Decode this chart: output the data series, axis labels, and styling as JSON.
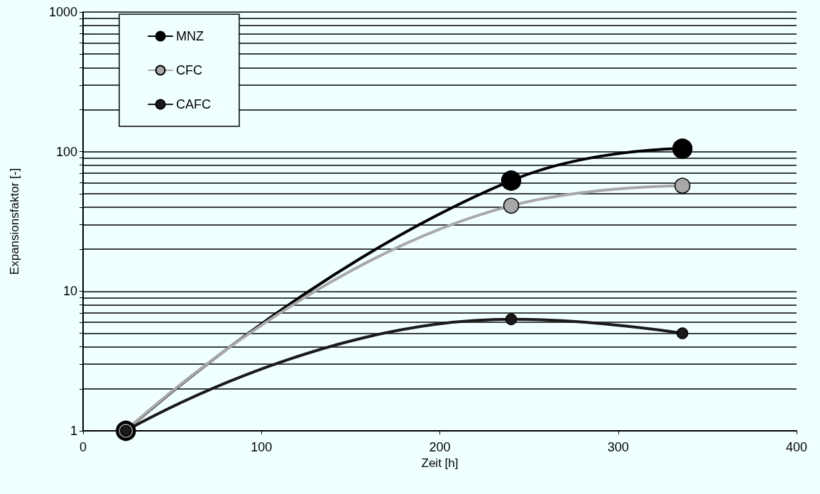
{
  "chart_data": {
    "type": "line",
    "xlabel": "Zeit [h]",
    "ylabel": "Expansionsfaktor [-]",
    "x": [
      24,
      240,
      336
    ],
    "series": [
      {
        "name": "MNZ",
        "color": "#000000",
        "values": [
          1,
          62,
          105
        ]
      },
      {
        "name": "CFC",
        "color": "#a8a8a8",
        "values": [
          1,
          41,
          57
        ]
      },
      {
        "name": "CAFC",
        "color": "#1a1a1a",
        "values": [
          1,
          6.3,
          5
        ]
      }
    ],
    "log": "y",
    "xlim": [
      0,
      400
    ],
    "xticks": [
      0,
      100,
      200,
      300,
      400
    ],
    "ylim": [
      1,
      1000
    ],
    "yticks": [
      1,
      {
        "value": 2,
        "label": null
      },
      {
        "value": 3,
        "label": null
      },
      {
        "value": 4,
        "label": null
      },
      {
        "value": 5,
        "label": null
      },
      {
        "value": 6,
        "label": null
      },
      {
        "value": 7,
        "label": null
      },
      {
        "value": 8,
        "label": null
      },
      {
        "value": 9,
        "label": null
      },
      10,
      {
        "value": 20,
        "label": null
      },
      {
        "value": 30,
        "label": null
      },
      {
        "value": 40,
        "label": null
      },
      {
        "value": 50,
        "label": null
      },
      {
        "value": 60,
        "label": null
      },
      {
        "value": 70,
        "label": null
      },
      {
        "value": 80,
        "label": null
      },
      {
        "value": 90,
        "label": null
      },
      100,
      {
        "value": 200,
        "label": null
      },
      {
        "value": 300,
        "label": null
      },
      {
        "value": 400,
        "label": null
      },
      {
        "value": 500,
        "label": null
      },
      {
        "value": 600,
        "label": null
      },
      {
        "value": 700,
        "label": null
      },
      {
        "value": 800,
        "label": null
      },
      {
        "value": 900,
        "label": null
      },
      1000
    ],
    "grid": "y",
    "legend": "top left",
    "marker": "circle",
    "line_style": "solid"
  }
}
